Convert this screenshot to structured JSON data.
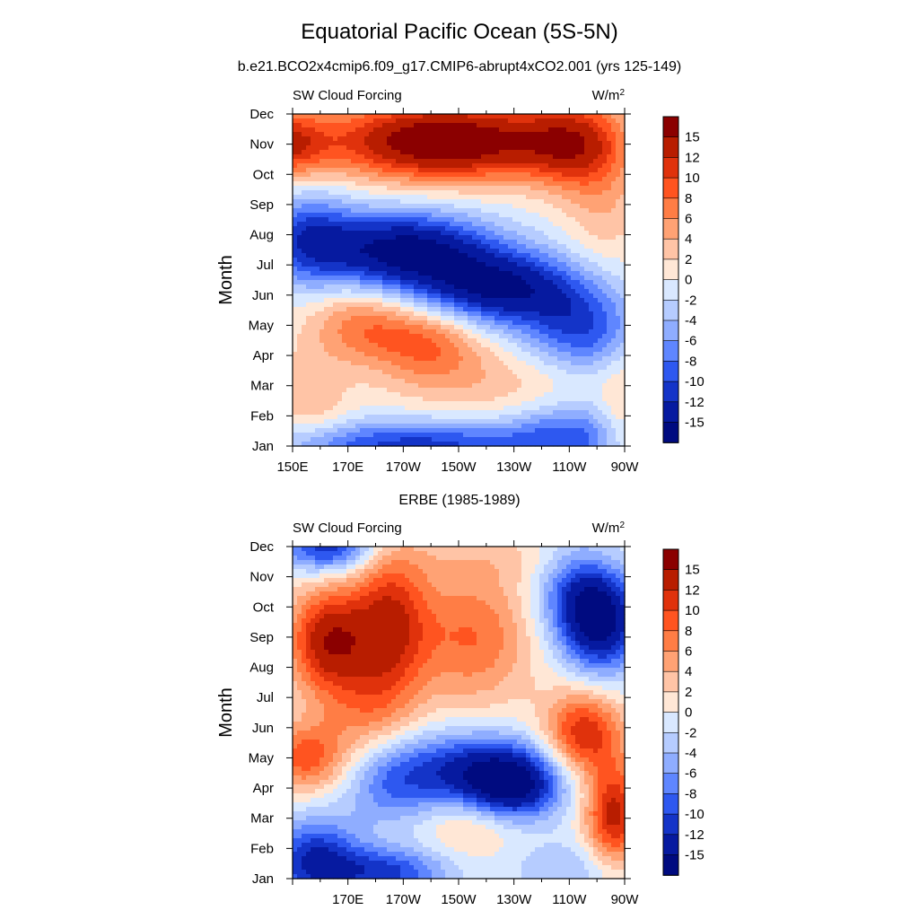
{
  "title": "Equatorial Pacific Ocean (5S-5N)",
  "subtitle": "b.e21.BCO2x4cmip6.f09_g17.CMIP6-abrupt4xCO2.001 (yrs 125-149)",
  "colorbar": {
    "levels": [
      "15",
      "12",
      "10",
      "8",
      "6",
      "4",
      "2",
      "0",
      "-2",
      "-4",
      "-6",
      "-8",
      "-10",
      "-12",
      "-15"
    ],
    "colors": [
      "#8b0000",
      "#b81d00",
      "#e0320c",
      "#ff5420",
      "#ff7d45",
      "#ffa274",
      "#ffc4a6",
      "#ffe7d6",
      "#d9e8ff",
      "#b6ccff",
      "#8fadff",
      "#5f86ff",
      "#2e58f0",
      "#1434c8",
      "#061aa0",
      "#000b80"
    ]
  },
  "chart_data": [
    {
      "type": "heatmap",
      "title": "b.e21.BCO2x4cmip6.f09_g17.CMIP6-abrupt4xCO2.001 (yrs 125-149)",
      "left_label": "SW Cloud Forcing",
      "units_label": "W/m",
      "units_sup": "2",
      "ylabel": "Month",
      "xlabel": "",
      "x_tick_labels": [
        "150E",
        "170E",
        "170W",
        "150W",
        "130W",
        "110W",
        "90W"
      ],
      "y_tick_labels": [
        "Jan",
        "Feb",
        "Mar",
        "Apr",
        "May",
        "Jun",
        "Jul",
        "Aug",
        "Sep",
        "Oct",
        "Nov",
        "Dec"
      ],
      "xlim": [
        150,
        270
      ],
      "ylim": [
        0,
        11
      ],
      "blobs": [
        {
          "lon": 148,
          "month": 10.0,
          "amp": 10,
          "sx": 10,
          "sy": 0.8
        },
        {
          "lon": 205,
          "month": 10.1,
          "amp": 19,
          "sx": 30,
          "sy": 0.9
        },
        {
          "lon": 250,
          "month": 10.0,
          "amp": 9,
          "sx": 12,
          "sy": 1.0
        },
        {
          "lon": 262,
          "month": 8.6,
          "amp": 4,
          "sx": 10,
          "sy": 2.0
        },
        {
          "lon": 155,
          "month": 6.9,
          "amp": -9,
          "sx": 12,
          "sy": 1.1
        },
        {
          "lon": 190,
          "month": 6.5,
          "amp": -16,
          "sx": 22,
          "sy": 0.9
        },
        {
          "lon": 225,
          "month": 5.2,
          "amp": -15,
          "sx": 22,
          "sy": 0.9
        },
        {
          "lon": 255,
          "month": 3.8,
          "amp": -9,
          "sx": 14,
          "sy": 1.0
        },
        {
          "lon": 175,
          "month": 4.0,
          "amp": 7,
          "sx": 14,
          "sy": 0.9
        },
        {
          "lon": 200,
          "month": 3.4,
          "amp": 8,
          "sx": 14,
          "sy": 0.9
        },
        {
          "lon": 155,
          "month": 1.5,
          "amp": 4,
          "sx": 10,
          "sy": 1.0
        },
        {
          "lon": 225,
          "month": 2.0,
          "amp": 3,
          "sx": 25,
          "sy": 0.8
        },
        {
          "lon": 195,
          "month": 0.0,
          "amp": -11,
          "sx": 35,
          "sy": 0.6
        },
        {
          "lon": 250,
          "month": 0.4,
          "amp": -7,
          "sx": 15,
          "sy": 0.8
        },
        {
          "lon": 268,
          "month": 1.0,
          "amp": 3,
          "sx": 5,
          "sy": 1.5
        }
      ]
    },
    {
      "type": "heatmap",
      "title": "ERBE (1985-1989)",
      "left_label": "SW Cloud Forcing",
      "units_label": "W/m",
      "units_sup": "2",
      "ylabel": "Month",
      "xlabel": "",
      "x_tick_labels": [
        "",
        "170E",
        "170W",
        "150W",
        "130W",
        "110W",
        "90W"
      ],
      "y_tick_labels": [
        "Jan",
        "Feb",
        "Mar",
        "Apr",
        "May",
        "Jun",
        "Jul",
        "Aug",
        "Sep",
        "Oct",
        "Nov",
        "Dec"
      ],
      "xlim": [
        150,
        270
      ],
      "ylim": [
        0,
        11
      ],
      "blobs": [
        {
          "lon": 163,
          "month": 11.0,
          "amp": -12,
          "sx": 12,
          "sy": 0.6
        },
        {
          "lon": 230,
          "month": 10.6,
          "amp": 2,
          "sx": 30,
          "sy": 0.6
        },
        {
          "lon": 163,
          "month": 7.9,
          "amp": 14,
          "sx": 10,
          "sy": 1.2
        },
        {
          "lon": 185,
          "month": 8.4,
          "amp": 12,
          "sx": 10,
          "sy": 1.8
        },
        {
          "lon": 215,
          "month": 8.0,
          "amp": 8,
          "sx": 15,
          "sy": 1.6
        },
        {
          "lon": 155,
          "month": 4.0,
          "amp": 9,
          "sx": 10,
          "sy": 0.8
        },
        {
          "lon": 175,
          "month": 5.5,
          "amp": 5,
          "sx": 12,
          "sy": 1.2
        },
        {
          "lon": 262,
          "month": 8.5,
          "amp": -15,
          "sx": 10,
          "sy": 1.2
        },
        {
          "lon": 252,
          "month": 9.5,
          "amp": -8,
          "sx": 10,
          "sy": 1.2
        },
        {
          "lon": 255,
          "month": 4.8,
          "amp": 12,
          "sx": 10,
          "sy": 1.0
        },
        {
          "lon": 266,
          "month": 2.1,
          "amp": 13,
          "sx": 7,
          "sy": 1.2
        },
        {
          "lon": 215,
          "month": 3.6,
          "amp": -12,
          "sx": 20,
          "sy": 0.9
        },
        {
          "lon": 230,
          "month": 3.0,
          "amp": -12,
          "sx": 12,
          "sy": 0.8
        },
        {
          "lon": 185,
          "month": 3.1,
          "amp": -6,
          "sx": 12,
          "sy": 1.0
        },
        {
          "lon": 158,
          "month": 0.6,
          "amp": -12,
          "sx": 12,
          "sy": 1.0
        },
        {
          "lon": 185,
          "month": 0.2,
          "amp": -10,
          "sx": 15,
          "sy": 0.6
        },
        {
          "lon": 215,
          "month": 1.8,
          "amp": 4,
          "sx": 12,
          "sy": 0.7
        },
        {
          "lon": 250,
          "month": 0.3,
          "amp": -4,
          "sx": 15,
          "sy": 0.7
        }
      ]
    }
  ]
}
